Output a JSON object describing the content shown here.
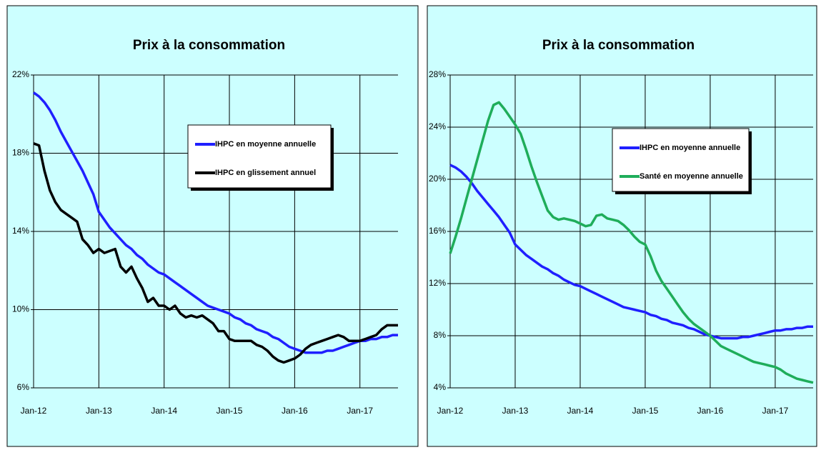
{
  "chart_data": [
    {
      "type": "line",
      "title": "Prix à la consommation",
      "categories": [
        "Jan-12",
        null,
        null,
        null,
        null,
        null,
        null,
        null,
        null,
        null,
        null,
        null,
        "Jan-13",
        null,
        null,
        null,
        null,
        null,
        null,
        null,
        null,
        null,
        null,
        null,
        "Jan-14",
        null,
        null,
        null,
        null,
        null,
        null,
        null,
        null,
        null,
        null,
        null,
        "Jan-15",
        null,
        null,
        null,
        null,
        null,
        null,
        null,
        null,
        null,
        null,
        null,
        "Jan-16",
        null,
        null,
        null,
        null,
        null,
        null,
        null,
        null,
        null,
        null,
        null,
        "Jan-17",
        null,
        null,
        null,
        null,
        null,
        null,
        null
      ],
      "ylim": [
        6,
        22
      ],
      "yticks": [
        {
          "value": 6,
          "label": "6%"
        },
        {
          "value": 10,
          "label": "10%"
        },
        {
          "value": 14,
          "label": "14%"
        },
        {
          "value": 18,
          "label": "18%"
        },
        {
          "value": 22,
          "label": "22%"
        }
      ],
      "grid": true,
      "series": [
        {
          "name": "IHPC en moyenne annuelle",
          "color": "#1f1fff",
          "values": [
            21.1,
            20.9,
            20.6,
            20.2,
            19.7,
            19.1,
            18.6,
            18.1,
            17.6,
            17.1,
            16.5,
            15.9,
            15.0,
            14.6,
            14.2,
            13.9,
            13.6,
            13.3,
            13.1,
            12.8,
            12.6,
            12.3,
            12.1,
            11.9,
            11.8,
            11.6,
            11.4,
            11.2,
            11.0,
            10.8,
            10.6,
            10.4,
            10.2,
            10.1,
            10.0,
            9.9,
            9.8,
            9.6,
            9.5,
            9.3,
            9.2,
            9.0,
            8.9,
            8.8,
            8.6,
            8.5,
            8.3,
            8.1,
            8.0,
            7.9,
            7.8,
            7.8,
            7.8,
            7.8,
            7.9,
            7.9,
            8.0,
            8.1,
            8.2,
            8.3,
            8.4,
            8.4,
            8.5,
            8.5,
            8.6,
            8.6,
            8.7,
            8.7
          ]
        },
        {
          "name": "IHPC en glissement annuel",
          "color": "#000000",
          "values": [
            18.5,
            18.4,
            17.1,
            16.1,
            15.5,
            15.1,
            14.9,
            14.7,
            14.5,
            13.6,
            13.3,
            12.9,
            13.1,
            12.9,
            13.0,
            13.1,
            12.2,
            11.9,
            12.2,
            11.6,
            11.1,
            10.4,
            10.6,
            10.2,
            10.2,
            10.0,
            10.2,
            9.8,
            9.6,
            9.7,
            9.6,
            9.7,
            9.5,
            9.3,
            8.9,
            8.9,
            8.5,
            8.4,
            8.4,
            8.4,
            8.4,
            8.2,
            8.1,
            7.9,
            7.6,
            7.4,
            7.3,
            7.4,
            7.5,
            7.7,
            8.0,
            8.2,
            8.3,
            8.4,
            8.5,
            8.6,
            8.7,
            8.6,
            8.4,
            8.4,
            8.4,
            8.5,
            8.6,
            8.7,
            9.0,
            9.2,
            9.2,
            9.2
          ]
        }
      ]
    },
    {
      "type": "line",
      "title": "Prix à la consommation",
      "categories": [
        "Jan-12",
        null,
        null,
        null,
        null,
        null,
        null,
        null,
        null,
        null,
        null,
        null,
        "Jan-13",
        null,
        null,
        null,
        null,
        null,
        null,
        null,
        null,
        null,
        null,
        null,
        "Jan-14",
        null,
        null,
        null,
        null,
        null,
        null,
        null,
        null,
        null,
        null,
        null,
        "Jan-15",
        null,
        null,
        null,
        null,
        null,
        null,
        null,
        null,
        null,
        null,
        null,
        "Jan-16",
        null,
        null,
        null,
        null,
        null,
        null,
        null,
        null,
        null,
        null,
        null,
        "Jan-17",
        null,
        null,
        null,
        null,
        null,
        null,
        null
      ],
      "ylim": [
        4,
        28
      ],
      "yticks": [
        {
          "value": 4,
          "label": "4%"
        },
        {
          "value": 8,
          "label": "8%"
        },
        {
          "value": 12,
          "label": "12%"
        },
        {
          "value": 16,
          "label": "16%"
        },
        {
          "value": 20,
          "label": "20%"
        },
        {
          "value": 24,
          "label": "24%"
        },
        {
          "value": 28,
          "label": "28%"
        }
      ],
      "grid": true,
      "series": [
        {
          "name": "IHPC en moyenne annuelle",
          "color": "#1f1fff",
          "values": [
            21.1,
            20.9,
            20.6,
            20.2,
            19.7,
            19.1,
            18.6,
            18.1,
            17.6,
            17.1,
            16.5,
            15.9,
            15.0,
            14.6,
            14.2,
            13.9,
            13.6,
            13.3,
            13.1,
            12.8,
            12.6,
            12.3,
            12.1,
            11.9,
            11.8,
            11.6,
            11.4,
            11.2,
            11.0,
            10.8,
            10.6,
            10.4,
            10.2,
            10.1,
            10.0,
            9.9,
            9.8,
            9.6,
            9.5,
            9.3,
            9.2,
            9.0,
            8.9,
            8.8,
            8.6,
            8.5,
            8.3,
            8.1,
            8.0,
            7.9,
            7.8,
            7.8,
            7.8,
            7.8,
            7.9,
            7.9,
            8.0,
            8.1,
            8.2,
            8.3,
            8.4,
            8.4,
            8.5,
            8.5,
            8.6,
            8.6,
            8.7,
            8.7
          ]
        },
        {
          "name": "Santé en moyenne annuelle",
          "color": "#1fad5a",
          "values": [
            14.3,
            15.6,
            17.0,
            18.5,
            20.0,
            21.5,
            23.0,
            24.5,
            25.7,
            25.9,
            25.4,
            24.8,
            24.2,
            23.5,
            22.3,
            21.0,
            19.8,
            18.7,
            17.6,
            17.1,
            16.9,
            17.0,
            16.9,
            16.8,
            16.6,
            16.4,
            16.5,
            17.2,
            17.3,
            17.0,
            16.9,
            16.8,
            16.5,
            16.1,
            15.6,
            15.2,
            15.0,
            14.1,
            13.0,
            12.2,
            11.6,
            11.0,
            10.4,
            9.8,
            9.3,
            8.9,
            8.6,
            8.3,
            8.0,
            7.6,
            7.2,
            7.0,
            6.8,
            6.6,
            6.4,
            6.2,
            6.0,
            5.9,
            5.8,
            5.7,
            5.6,
            5.4,
            5.1,
            4.9,
            4.7,
            4.6,
            4.5,
            4.4
          ]
        }
      ]
    }
  ]
}
